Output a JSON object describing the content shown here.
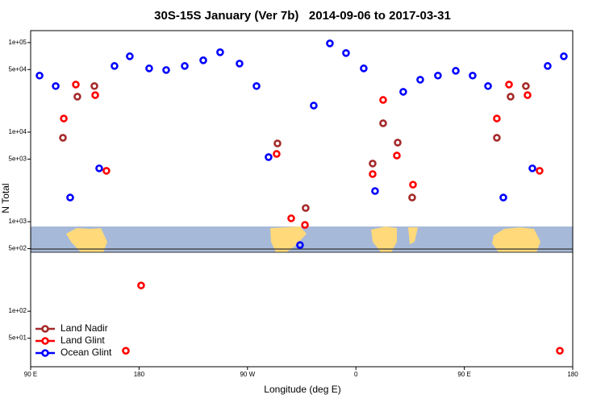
{
  "chart_data": {
    "type": "scatter",
    "title": "30S-15S January (Ver 7b)   2014-09-06 to 2017-03-31",
    "xlabel": "Longitude (deg E)",
    "ylabel": "N Total",
    "xlim": [
      90,
      540
    ],
    "xticks": [
      {
        "value": 90,
        "label": "90 E"
      },
      {
        "value": 180,
        "label": "180"
      },
      {
        "value": 270,
        "label": "90 W"
      },
      {
        "value": 360,
        "label": "0"
      },
      {
        "value": 450,
        "label": "90 E"
      },
      {
        "value": 540,
        "label": "180"
      }
    ],
    "ylim": [
      24,
      136000
    ],
    "log_y": true,
    "yticks": [
      {
        "value": 100000,
        "label": "1e+05"
      },
      {
        "value": 50000,
        "label": "5e+04"
      },
      {
        "value": 10000,
        "label": "1e+04"
      },
      {
        "value": 5000,
        "label": "5e+03"
      },
      {
        "value": 1000,
        "label": "1e+03"
      },
      {
        "value": 500,
        "label": "5e+02"
      },
      {
        "value": 100,
        "label": "1e+02"
      },
      {
        "value": 50,
        "label": "5e+01"
      }
    ],
    "legend": "lower left",
    "series": [
      {
        "name": "Land Nadir",
        "color": "#a52a2a",
        "x": [
          116.8,
          128.8,
          142.9,
          294.9,
          318.3,
          373.9,
          382.6,
          394.7,
          406.7,
          477.0,
          488.4,
          501.1
        ],
        "values": [
          8650,
          24900,
          32700,
          7480,
          1420,
          4460,
          12560,
          7640,
          1860,
          8650,
          24900,
          32700
        ]
      },
      {
        "name": "Land Glint",
        "color": "#ff0000",
        "x": [
          117.5,
          127.5,
          143.6,
          152.9,
          181.7,
          169.0,
          294.2,
          306.3,
          317.7,
          373.9,
          382.6,
          394.0,
          407.4,
          477.0,
          487.1,
          502.5,
          512.5,
          529.3
        ],
        "values": [
          14200,
          34000,
          25900,
          3700,
          194,
          36.2,
          5710,
          1090,
          920,
          3400,
          22900,
          5480,
          2590,
          14200,
          34000,
          25900,
          3700,
          36.2
        ]
      },
      {
        "name": "Ocean Glint",
        "color": "#0000ff",
        "x": [
          97.4,
          110.8,
          122.8,
          146.9,
          159.6,
          172.3,
          188.4,
          202.5,
          217.9,
          233.3,
          247.3,
          263.4,
          277.5,
          287.5,
          313.6,
          325.0,
          338.4,
          351.8,
          366.5,
          375.9,
          399.3,
          413.4,
          428.1,
          442.9,
          456.9,
          469.7,
          482.4,
          506.5,
          519.2,
          532.6
        ],
        "values": [
          42800,
          32700,
          1860,
          3940,
          54800,
          70300,
          51500,
          49400,
          54800,
          63400,
          78000,
          58300,
          32700,
          5260,
          548,
          19800,
          98000,
          76400,
          51500,
          2200,
          28200,
          38500,
          42800,
          48400,
          42800,
          32700,
          1860,
          3940,
          54800,
          70300
        ]
      }
    ]
  }
}
